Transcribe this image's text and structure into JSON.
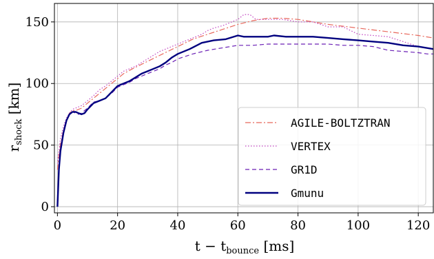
{
  "chart_data": {
    "type": "line",
    "xlabel": {
      "main": "t − t",
      "sub": "bounce",
      "unit": " [ms]"
    },
    "ylabel": {
      "main": "r",
      "sub": "shock",
      "unit": " [km]"
    },
    "xlim": [
      -1,
      125
    ],
    "ylim": [
      -5,
      165
    ],
    "xticks": [
      0,
      20,
      40,
      60,
      80,
      100,
      120
    ],
    "yticks": [
      0,
      50,
      100,
      150
    ],
    "grid": true,
    "legend_position": "bottom-right",
    "series": [
      {
        "name": "AGILE-BOLTZTRAN",
        "color": "#e8675b",
        "style": "dashdot",
        "width": 1.2,
        "x": [
          0,
          0.5,
          1,
          2,
          3,
          4,
          5,
          6,
          8,
          10,
          12,
          15,
          18,
          20,
          22,
          25,
          30,
          35,
          40,
          45,
          50,
          55,
          60,
          65,
          70,
          75,
          80,
          90,
          100,
          110,
          120,
          125
        ],
        "y": [
          30,
          42,
          50,
          62,
          70,
          76,
          78,
          78,
          80,
          84,
          88,
          94,
          100,
          104,
          108,
          112,
          118,
          124,
          130,
          136,
          140,
          144,
          148,
          151,
          153,
          153,
          152,
          148,
          145,
          142,
          139,
          137
        ]
      },
      {
        "name": "VERTEX",
        "color": "#c040c0",
        "style": "dotted",
        "width": 1.2,
        "x": [
          0,
          0.5,
          1,
          2,
          3,
          4,
          5,
          6,
          8,
          10,
          12,
          14,
          16,
          18,
          20,
          22,
          24,
          26,
          28,
          30,
          32,
          34,
          36,
          38,
          40,
          42,
          45,
          48,
          50,
          52,
          55,
          58,
          60,
          62,
          64,
          66,
          70,
          75,
          80,
          85,
          90,
          95,
          100,
          110,
          115,
          120,
          125
        ],
        "y": [
          35,
          45,
          55,
          65,
          72,
          76,
          79,
          80,
          82,
          86,
          90,
          95,
          98,
          102,
          106,
          110,
          112,
          114,
          117,
          120,
          123,
          126,
          128,
          130,
          132,
          134,
          137,
          140,
          143,
          145,
          147,
          150,
          152,
          156,
          156,
          152,
          152,
          152,
          150,
          150,
          146,
          146,
          140,
          138,
          134,
          130,
          128
        ]
      },
      {
        "name": "GR1D",
        "color": "#6a1fb5",
        "style": "dashed",
        "width": 1.2,
        "x": [
          0,
          0.5,
          1,
          2,
          3,
          4,
          5,
          6,
          7,
          8,
          10,
          12,
          14,
          16,
          18,
          20,
          22,
          24,
          26,
          28,
          30,
          32,
          34,
          36,
          38,
          40,
          45,
          50,
          55,
          60,
          65,
          70,
          75,
          80,
          85,
          90,
          95,
          100,
          105,
          110,
          115,
          120,
          123,
          125
        ],
        "y": [
          0,
          30,
          45,
          60,
          70,
          75,
          77,
          76,
          75,
          76,
          80,
          85,
          86,
          88,
          92,
          97,
          99,
          101,
          104,
          106,
          108,
          110,
          112,
          115,
          117,
          120,
          124,
          127,
          129,
          131,
          131,
          132,
          132,
          132,
          132,
          132,
          131,
          131,
          130,
          127,
          126,
          125,
          124,
          124
        ]
      },
      {
        "name": "Gmunu",
        "color": "#00007f",
        "style": "solid",
        "width": 2.4,
        "x": [
          0,
          0.5,
          1,
          2,
          3,
          4,
          5,
          6,
          7,
          8,
          9,
          10,
          12,
          14,
          16,
          18,
          20,
          22,
          24,
          26,
          28,
          30,
          32,
          34,
          36,
          38,
          40,
          44,
          48,
          52,
          56,
          60,
          62,
          64,
          70,
          72,
          76,
          80,
          85,
          90,
          95,
          100,
          105,
          110,
          115,
          120,
          125
        ],
        "y": [
          0,
          30,
          45,
          60,
          70,
          75,
          77,
          77,
          76,
          75,
          76,
          79,
          84,
          86,
          88,
          93,
          98,
          100,
          102,
          105,
          108,
          110,
          112,
          114,
          117,
          121,
          124,
          128,
          133,
          135,
          136,
          139,
          138,
          138,
          138,
          139,
          138,
          138,
          138,
          137,
          136,
          135,
          134,
          133,
          131,
          130,
          128
        ]
      }
    ]
  }
}
